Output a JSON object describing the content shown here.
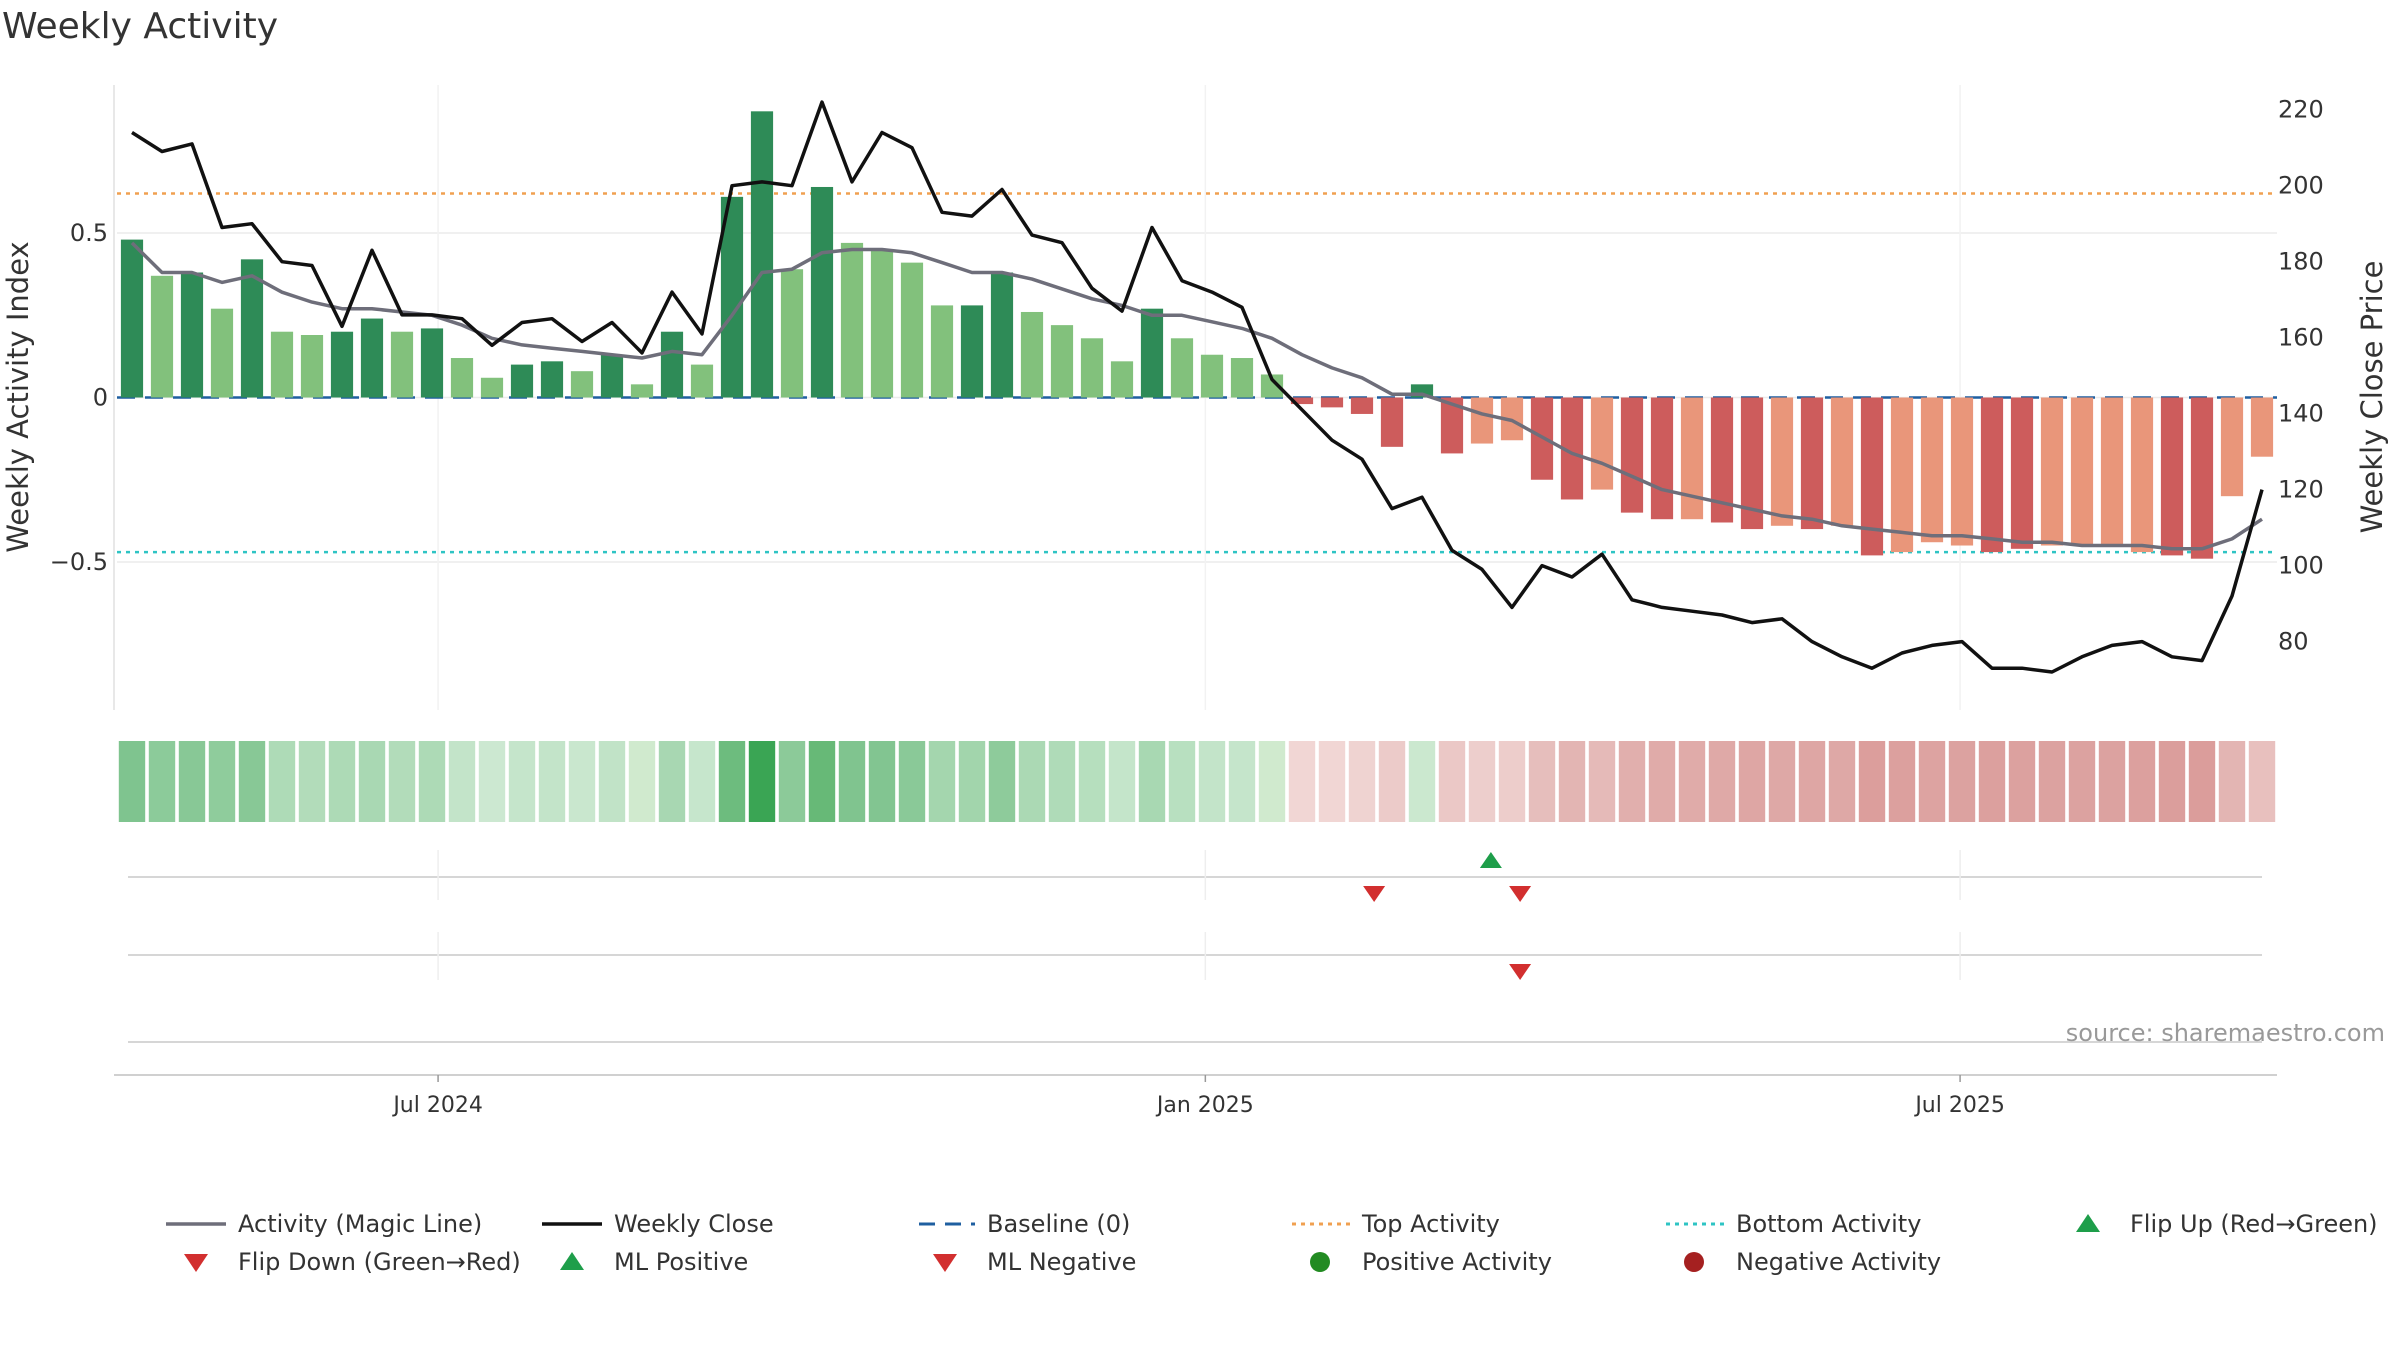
{
  "title": "Weekly Activity",
  "source": "source: sharemaestro.com",
  "colors": {
    "strong_green": "#2e8b57",
    "light_green": "#82c17c",
    "strong_red": "#cd5c5c",
    "light_red": "#e9967a",
    "magic_line": "#6e6e7a",
    "close_line": "#111111",
    "baseline": "#1f5fa0",
    "top_line": "#f0a050",
    "bottom_line": "#2ec4c4",
    "flip_up": "#1e9e4a",
    "flip_down": "#d22f2f",
    "positive_dot": "#228b22",
    "negative_dot": "#a52020"
  },
  "chart_data": {
    "type": "bar",
    "title": "Weekly Activity",
    "ylabel": "Weekly Activity Index",
    "y2label": "Weekly Close Price",
    "ylim": [
      -0.95,
      0.95
    ],
    "y2lim": [
      62.0,
      226.5
    ],
    "yticks": [
      0.5,
      0,
      -0.5
    ],
    "ytick_labels": [
      "0.5",
      "0",
      "−0.5"
    ],
    "y2ticks": [
      80,
      100,
      120,
      140,
      160,
      180,
      200,
      220
    ],
    "x_start": "2024-04-15",
    "x_end": "2025-09-15",
    "xticks": [
      "2024-07-01",
      "2025-01-01",
      "2025-07-01"
    ],
    "xtick_labels": [
      "Jul 2024",
      "Jan 2025",
      "Jul 2025"
    ],
    "top_activity": 0.62,
    "bottom_activity": -0.47,
    "baseline": 0,
    "activity": [
      0.48,
      0.37,
      0.38,
      0.27,
      0.42,
      0.2,
      0.19,
      0.2,
      0.24,
      0.2,
      0.21,
      0.12,
      0.06,
      0.1,
      0.11,
      0.08,
      0.13,
      0.04,
      0.2,
      0.1,
      0.61,
      0.87,
      0.39,
      0.64,
      0.47,
      0.45,
      0.41,
      0.28,
      0.28,
      0.38,
      0.26,
      0.22,
      0.18,
      0.11,
      0.27,
      0.18,
      0.13,
      0.12,
      0.07,
      -0.02,
      -0.03,
      -0.05,
      -0.15,
      0.04,
      -0.17,
      -0.14,
      -0.13,
      -0.25,
      -0.31,
      -0.28,
      -0.35,
      -0.37,
      -0.37,
      -0.38,
      -0.4,
      -0.39,
      -0.4,
      -0.39,
      -0.48,
      -0.47,
      -0.44,
      -0.45,
      -0.47,
      -0.46,
      -0.45,
      -0.45,
      -0.45,
      -0.47,
      -0.48,
      -0.49,
      -0.3,
      -0.18
    ],
    "activity_strength": [
      "strong",
      "light",
      "strong",
      "light",
      "strong",
      "light",
      "light",
      "strong",
      "strong",
      "light",
      "strong",
      "light",
      "light",
      "strong",
      "strong",
      "light",
      "strong",
      "light",
      "strong",
      "light",
      "strong",
      "strong",
      "light",
      "strong",
      "light",
      "light",
      "light",
      "light",
      "strong",
      "strong",
      "light",
      "light",
      "light",
      "light",
      "strong",
      "light",
      "light",
      "light",
      "light",
      "strong",
      "strong",
      "strong",
      "strong",
      "strong",
      "strong",
      "light",
      "light",
      "strong",
      "strong",
      "light",
      "strong",
      "strong",
      "light",
      "strong",
      "strong",
      "light",
      "strong",
      "light",
      "strong",
      "light",
      "light",
      "light",
      "strong",
      "strong",
      "light",
      "light",
      "light",
      "light",
      "strong",
      "strong",
      "light",
      "light"
    ],
    "magic_line": [
      0.47,
      0.38,
      0.38,
      0.35,
      0.37,
      0.32,
      0.29,
      0.27,
      0.27,
      0.26,
      0.25,
      0.22,
      0.18,
      0.16,
      0.15,
      0.14,
      0.13,
      0.12,
      0.14,
      0.13,
      0.25,
      0.38,
      0.39,
      0.44,
      0.45,
      0.45,
      0.44,
      0.41,
      0.38,
      0.38,
      0.36,
      0.33,
      0.3,
      0.28,
      0.25,
      0.25,
      0.23,
      0.21,
      0.18,
      0.13,
      0.09,
      0.06,
      0.01,
      0.01,
      -0.02,
      -0.05,
      -0.07,
      -0.12,
      -0.17,
      -0.2,
      -0.24,
      -0.28,
      -0.3,
      -0.32,
      -0.34,
      -0.36,
      -0.37,
      -0.39,
      -0.4,
      -0.41,
      -0.42,
      -0.42,
      -0.43,
      -0.44,
      -0.44,
      -0.45,
      -0.45,
      -0.45,
      -0.46,
      -0.46,
      -0.43,
      -0.37
    ],
    "close": [
      214,
      209,
      211,
      189,
      190,
      180,
      179,
      163,
      183,
      166,
      166,
      165,
      158,
      164,
      165,
      159,
      164,
      156,
      172,
      161,
      200,
      201,
      200,
      222,
      201,
      214,
      210,
      193,
      192,
      199,
      187,
      185,
      173,
      167,
      189,
      175,
      172,
      168,
      149,
      141,
      133,
      128,
      115,
      118,
      104,
      99,
      89,
      100,
      97,
      103,
      91,
      89,
      88,
      87,
      85,
      86,
      80,
      76,
      73,
      77,
      79,
      80,
      73,
      73,
      72,
      76,
      79,
      80,
      76,
      75,
      92,
      120
    ],
    "heat_strip": [
      "#7fc48f",
      "#8ccb9a",
      "#88c896",
      "#8fcc9c",
      "#88c896",
      "#aedbb7",
      "#b2dcba",
      "#addab6",
      "#a9d8b3",
      "#b2dcba",
      "#addab6",
      "#c3e4c9",
      "#cce8d1",
      "#c5e5cb",
      "#c3e4c9",
      "#c9e7ce",
      "#c1e3c7",
      "#d0eace",
      "#a8d7b2",
      "#c6e6cc",
      "#6dbc7e",
      "#3aa554",
      "#8cca99",
      "#67b977",
      "#80c48f",
      "#82c591",
      "#8ac998",
      "#a4d6ae",
      "#a2d5ac",
      "#8ecb9b",
      "#abd9b4",
      "#afdbb8",
      "#b6dfbe",
      "#c4e5ca",
      "#a8d8b2",
      "#b8e0c0",
      "#c3e4c9",
      "#c5e5cb",
      "#d0eace",
      "#f1d6d4",
      "#f1d6d4",
      "#efd3d1",
      "#eccbc9",
      "#cbe8cf",
      "#ebc8c6",
      "#edcecc",
      "#edcdcb",
      "#e6bebc",
      "#e3b5b3",
      "#e5bab8",
      "#e1afad",
      "#e0aba9",
      "#e0aba9",
      "#dfa9a7",
      "#dea6a4",
      "#dea8a6",
      "#dea6a4",
      "#dea8a6",
      "#dc9e9c",
      "#dca09e",
      "#dda3a1",
      "#dca2a0",
      "#dca09e",
      "#dca19f",
      "#dca2a0",
      "#dca2a0",
      "#dca2a0",
      "#dca09e",
      "#db9e9c",
      "#db9d9b",
      "#e3b5b3",
      "#e8c0be"
    ],
    "markers": [
      {
        "row": 0,
        "date": "2025-02-10",
        "type": "flip_down"
      },
      {
        "row": 0,
        "date": "2025-03-10",
        "type": "flip_up"
      },
      {
        "row": 0,
        "date": "2025-03-17",
        "type": "flip_down"
      },
      {
        "row": 1,
        "date": "2025-03-17",
        "type": "flip_down"
      }
    ],
    "legend_position": "bottom",
    "grid": true
  },
  "legend": [
    {
      "label": "Activity (Magic Line)",
      "swatch": "line",
      "color": "#6e6e7a"
    },
    {
      "label": "Weekly Close",
      "swatch": "line",
      "color": "#111111"
    },
    {
      "label": "Baseline (0)",
      "swatch": "dash",
      "color": "#1f5fa0"
    },
    {
      "label": "Top Activity",
      "swatch": "dot",
      "color": "#f0a050"
    },
    {
      "label": "Bottom Activity",
      "swatch": "dot",
      "color": "#2ec4c4"
    },
    {
      "label": "Flip Up (Red→Green)",
      "swatch": "tri-up",
      "color": "#1e9e4a"
    },
    {
      "label": "Flip Down (Green→Red)",
      "swatch": "tri-down",
      "color": "#d22f2f"
    },
    {
      "label": "ML Positive",
      "swatch": "tri-up",
      "color": "#1e9e4a"
    },
    {
      "label": "ML Negative",
      "swatch": "tri-down",
      "color": "#d22f2f"
    },
    {
      "label": "Positive Activity",
      "swatch": "circle",
      "color": "#228b22"
    },
    {
      "label": "Negative Activity",
      "swatch": "circle",
      "color": "#a52020"
    }
  ]
}
